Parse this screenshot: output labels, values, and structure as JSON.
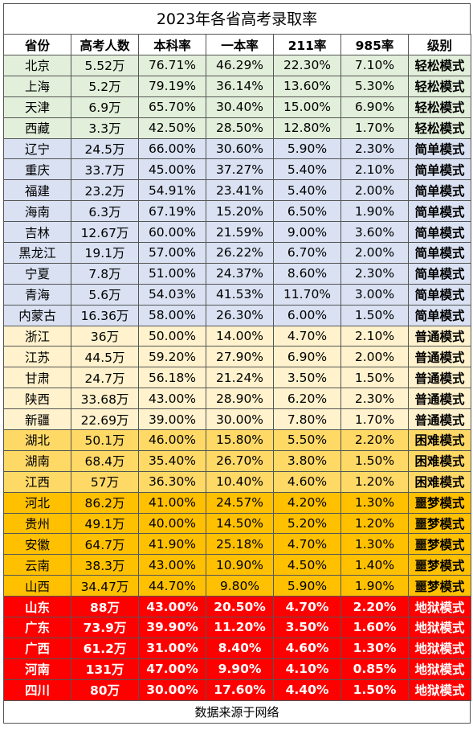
{
  "title": "2023年各省高考录取率",
  "headers": [
    "省份",
    "高考人数",
    "本科率",
    "一本率",
    "211率",
    "985率",
    "级别"
  ],
  "level_colors": {
    "轻松模式": "#e2efda",
    "简单模式": "#d9e1f2",
    "普通模式": "#fff2cc",
    "困难模式": "#ffd966",
    "噩梦模式": "#ffc000",
    "地狱模式": "#ff0000"
  },
  "rows": [
    {
      "province": "北京",
      "count": "5.52万",
      "bachelor": "76.71%",
      "first_tier": "46.29%",
      "r211": "22.30%",
      "r985": "7.10%",
      "level": "轻松模式"
    },
    {
      "province": "上海",
      "count": "5.2万",
      "bachelor": "79.19%",
      "first_tier": "36.14%",
      "r211": "13.60%",
      "r985": "5.30%",
      "level": "轻松模式"
    },
    {
      "province": "天津",
      "count": "6.9万",
      "bachelor": "65.70%",
      "first_tier": "30.40%",
      "r211": "15.00%",
      "r985": "6.90%",
      "level": "轻松模式"
    },
    {
      "province": "西藏",
      "count": "3.3万",
      "bachelor": "42.50%",
      "first_tier": "28.50%",
      "r211": "12.80%",
      "r985": "1.70%",
      "level": "轻松模式"
    },
    {
      "province": "辽宁",
      "count": "24.5万",
      "bachelor": "66.00%",
      "first_tier": "30.60%",
      "r211": "5.90%",
      "r985": "2.30%",
      "level": "简单模式"
    },
    {
      "province": "重庆",
      "count": "33.7万",
      "bachelor": "45.00%",
      "first_tier": "37.27%",
      "r211": "5.40%",
      "r985": "2.10%",
      "level": "简单模式"
    },
    {
      "province": "福建",
      "count": "23.2万",
      "bachelor": "54.91%",
      "first_tier": "23.41%",
      "r211": "5.40%",
      "r985": "2.00%",
      "level": "简单模式"
    },
    {
      "province": "海南",
      "count": "6.3万",
      "bachelor": "67.19%",
      "first_tier": "15.20%",
      "r211": "6.50%",
      "r985": "1.90%",
      "level": "简单模式"
    },
    {
      "province": "吉林",
      "count": "12.67万",
      "bachelor": "60.00%",
      "first_tier": "21.59%",
      "r211": "9.00%",
      "r985": "3.60%",
      "level": "简单模式"
    },
    {
      "province": "黑龙江",
      "count": "19.1万",
      "bachelor": "57.00%",
      "first_tier": "26.22%",
      "r211": "6.70%",
      "r985": "2.00%",
      "level": "简单模式"
    },
    {
      "province": "宁夏",
      "count": "7.8万",
      "bachelor": "51.00%",
      "first_tier": "24.37%",
      "r211": "8.60%",
      "r985": "2.30%",
      "level": "简单模式"
    },
    {
      "province": "青海",
      "count": "5.6万",
      "bachelor": "54.03%",
      "first_tier": "41.53%",
      "r211": "11.70%",
      "r985": "3.00%",
      "level": "简单模式"
    },
    {
      "province": "内蒙古",
      "count": "16.36万",
      "bachelor": "58.00%",
      "first_tier": "26.30%",
      "r211": "6.00%",
      "r985": "1.50%",
      "level": "简单模式"
    },
    {
      "province": "浙江",
      "count": "36万",
      "bachelor": "50.00%",
      "first_tier": "14.00%",
      "r211": "4.70%",
      "r985": "2.10%",
      "level": "普通模式"
    },
    {
      "province": "江苏",
      "count": "44.5万",
      "bachelor": "59.20%",
      "first_tier": "27.90%",
      "r211": "6.90%",
      "r985": "2.00%",
      "level": "普通模式"
    },
    {
      "province": "甘肃",
      "count": "24.7万",
      "bachelor": "56.18%",
      "first_tier": "21.24%",
      "r211": "3.50%",
      "r985": "1.50%",
      "level": "普通模式"
    },
    {
      "province": "陕西",
      "count": "33.68万",
      "bachelor": "43.00%",
      "first_tier": "28.90%",
      "r211": "6.20%",
      "r985": "2.30%",
      "level": "普通模式"
    },
    {
      "province": "新疆",
      "count": "22.69万",
      "bachelor": "39.00%",
      "first_tier": "30.00%",
      "r211": "7.80%",
      "r985": "1.70%",
      "level": "普通模式"
    },
    {
      "province": "湖北",
      "count": "50.1万",
      "bachelor": "46.00%",
      "first_tier": "15.80%",
      "r211": "5.50%",
      "r985": "2.20%",
      "level": "困难模式"
    },
    {
      "province": "湖南",
      "count": "68.4万",
      "bachelor": "35.40%",
      "first_tier": "26.70%",
      "r211": "3.80%",
      "r985": "1.50%",
      "level": "困难模式"
    },
    {
      "province": "江西",
      "count": "57万",
      "bachelor": "36.30%",
      "first_tier": "10.40%",
      "r211": "4.60%",
      "r985": "1.20%",
      "level": "困难模式"
    },
    {
      "province": "河北",
      "count": "86.2万",
      "bachelor": "41.00%",
      "first_tier": "24.57%",
      "r211": "4.20%",
      "r985": "1.30%",
      "level": "噩梦模式"
    },
    {
      "province": "贵州",
      "count": "49.1万",
      "bachelor": "40.00%",
      "first_tier": "14.50%",
      "r211": "5.20%",
      "r985": "1.20%",
      "level": "噩梦模式"
    },
    {
      "province": "安徽",
      "count": "64.7万",
      "bachelor": "41.90%",
      "first_tier": "25.18%",
      "r211": "4.70%",
      "r985": "1.30%",
      "level": "噩梦模式"
    },
    {
      "province": "云南",
      "count": "38.3万",
      "bachelor": "43.00%",
      "first_tier": "10.90%",
      "r211": "4.50%",
      "r985": "1.40%",
      "level": "噩梦模式"
    },
    {
      "province": "山西",
      "count": "34.47万",
      "bachelor": "44.70%",
      "first_tier": "9.80%",
      "r211": "5.90%",
      "r985": "1.90%",
      "level": "噩梦模式"
    },
    {
      "province": "山东",
      "count": "88万",
      "bachelor": "43.00%",
      "first_tier": "20.50%",
      "r211": "4.70%",
      "r985": "2.20%",
      "level": "地狱模式"
    },
    {
      "province": "广东",
      "count": "73.9万",
      "bachelor": "39.90%",
      "first_tier": "11.20%",
      "r211": "3.50%",
      "r985": "1.60%",
      "level": "地狱模式"
    },
    {
      "province": "广西",
      "count": "61.2万",
      "bachelor": "31.00%",
      "first_tier": "8.40%",
      "r211": "4.60%",
      "r985": "1.30%",
      "level": "地狱模式"
    },
    {
      "province": "河南",
      "count": "131万",
      "bachelor": "47.00%",
      "first_tier": "9.90%",
      "r211": "4.10%",
      "r985": "0.85%",
      "level": "地狱模式"
    },
    {
      "province": "四川",
      "count": "80万",
      "bachelor": "30.00%",
      "first_tier": "17.60%",
      "r211": "4.40%",
      "r985": "1.50%",
      "level": "地狱模式"
    }
  ],
  "footer": "数据来源于网络"
}
